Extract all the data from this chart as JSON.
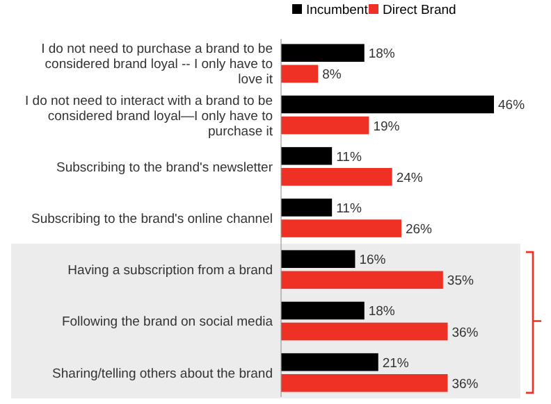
{
  "chart_data": {
    "type": "bar",
    "orientation": "horizontal",
    "categories": [
      "I do not need to purchase a brand to be considered brand loyal -- I only have to love it",
      "I do not need to interact with a brand to be considered brand loyal—I only have to purchase it",
      "Subscribing to the brand's newsletter",
      "Subscribing to the brand's online channel",
      "Having a subscription from a brand",
      "Following the brand on social media",
      "Sharing/telling others about the brand"
    ],
    "series": [
      {
        "name": "Incumbent",
        "color": "#000000",
        "values": [
          18,
          46,
          11,
          11,
          16,
          18,
          21
        ],
        "value_labels": [
          "18%",
          "46%",
          "11%",
          "11%",
          "16%",
          "18%",
          "21%"
        ]
      },
      {
        "name": "Direct Brand",
        "color": "#ee3124",
        "values": [
          8,
          19,
          24,
          26,
          35,
          36,
          36
        ],
        "value_labels": [
          "8%",
          "19%",
          "24%",
          "26%",
          "35%",
          "36%",
          "36%"
        ]
      }
    ],
    "legend": "top",
    "tick_labels": "y",
    "bands": [
      {
        "axis": "y",
        "from": "Having a subscription from a brand",
        "to": "Sharing/telling others about the brand",
        "color": "#ececec"
      }
    ]
  }
}
